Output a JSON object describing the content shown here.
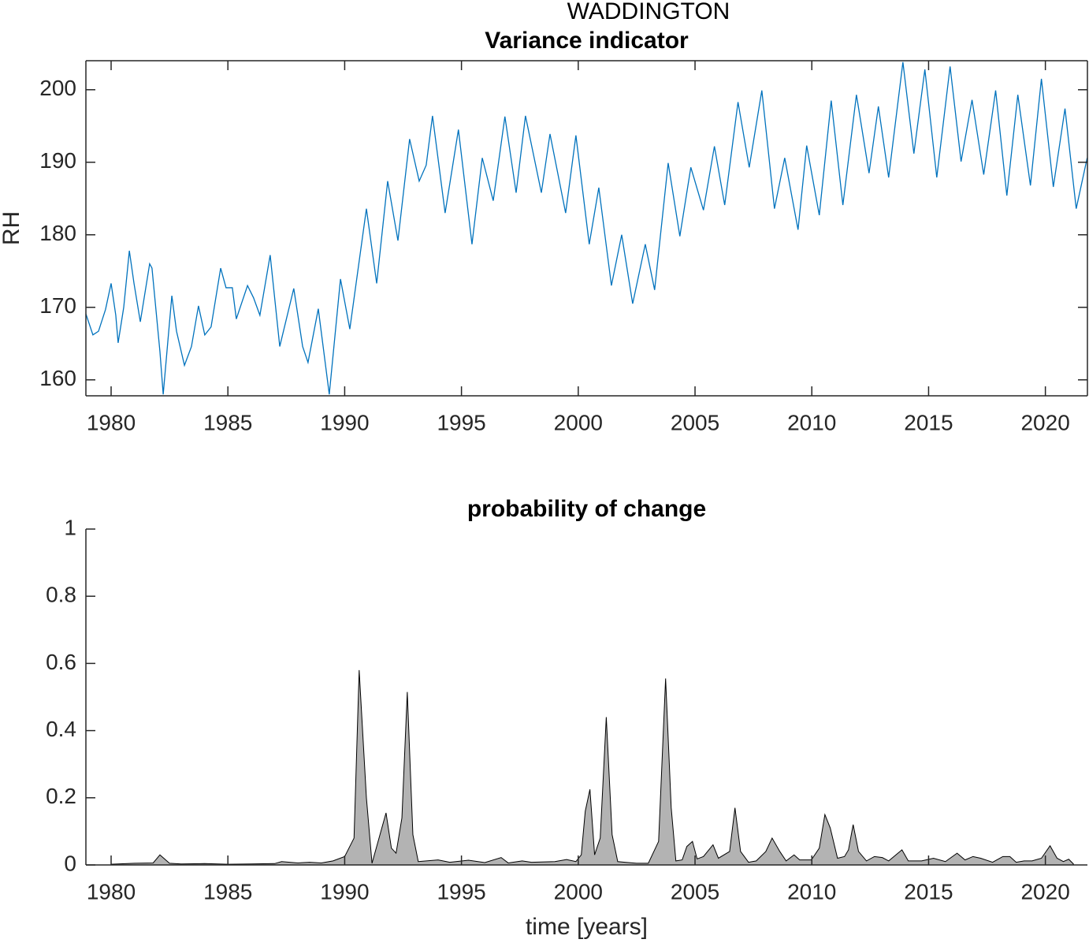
{
  "title": "WADDINGTON",
  "chart_data": [
    {
      "type": "line",
      "title": "Variance indicator",
      "ylabel": "RH",
      "color": "#0072bd",
      "box": true,
      "xlim": [
        1978.92,
        2021.8
      ],
      "ylim": [
        157.8,
        204.0
      ],
      "xticks": [
        1980,
        1985,
        1990,
        1995,
        2000,
        2005,
        2010,
        2015,
        2020
      ],
      "yticks": [
        160,
        170,
        180,
        190,
        200
      ],
      "x": [
        1978.92,
        1979.22,
        1979.46,
        1979.76,
        1980.0,
        1980.2,
        1980.3,
        1980.54,
        1980.78,
        1980.98,
        1981.25,
        1981.65,
        1981.75,
        1982.09,
        1982.23,
        1982.6,
        1982.8,
        1983.14,
        1983.44,
        1983.74,
        1984.01,
        1984.28,
        1984.69,
        1984.92,
        1985.19,
        1985.36,
        1985.84,
        1986.1,
        1986.37,
        1986.81,
        1987.22,
        1987.82,
        1988.2,
        1988.43,
        1988.87,
        1989.34,
        1989.82,
        1990.22,
        1990.93,
        1991.37,
        1991.84,
        1992.28,
        1992.78,
        1993.19,
        1993.49,
        1993.76,
        1994.3,
        1994.87,
        1995.45,
        1995.89,
        1996.36,
        1996.86,
        1997.34,
        1997.74,
        1998.42,
        1998.79,
        1999.46,
        1999.9,
        2000.47,
        2000.88,
        2001.42,
        2001.86,
        2002.33,
        2002.87,
        2003.27,
        2003.85,
        2004.35,
        2004.82,
        2005.36,
        2005.83,
        2006.27,
        2006.84,
        2007.32,
        2007.86,
        2008.4,
        2008.84,
        2009.41,
        2009.78,
        2010.32,
        2010.83,
        2011.33,
        2011.91,
        2012.45,
        2012.85,
        2013.29,
        2013.9,
        2014.37,
        2014.84,
        2015.35,
        2015.92,
        2016.39,
        2016.86,
        2017.36,
        2017.87,
        2018.35,
        2018.82,
        2019.36,
        2019.83,
        2020.34,
        2020.84,
        2021.32,
        2021.79
      ],
      "values": [
        169.1,
        166.2,
        166.7,
        169.7,
        173.3,
        168.9,
        165.1,
        170.0,
        177.8,
        173.3,
        168.0,
        176.0,
        175.4,
        163.9,
        158.0,
        171.6,
        166.7,
        162.0,
        164.6,
        170.2,
        166.2,
        167.3,
        175.4,
        172.7,
        172.7,
        168.4,
        173.0,
        171.3,
        168.9,
        177.2,
        164.6,
        172.6,
        164.6,
        162.4,
        169.8,
        158.0,
        173.9,
        167.0,
        183.6,
        173.3,
        187.4,
        179.2,
        193.2,
        187.4,
        189.6,
        196.4,
        183.0,
        194.5,
        178.7,
        190.6,
        184.7,
        196.3,
        185.8,
        196.4,
        185.8,
        193.9,
        183.0,
        193.7,
        178.7,
        186.5,
        173.0,
        180.0,
        170.5,
        178.7,
        172.4,
        189.9,
        179.8,
        189.3,
        183.4,
        192.2,
        184.1,
        198.3,
        189.3,
        199.9,
        183.6,
        190.6,
        180.7,
        192.3,
        182.7,
        198.5,
        184.1,
        199.3,
        188.5,
        197.7,
        187.9,
        203.8,
        191.2,
        202.8,
        187.9,
        203.2,
        190.1,
        198.6,
        188.3,
        199.9,
        185.4,
        199.3,
        186.8,
        201.5,
        186.6,
        197.4,
        183.6,
        190.6
      ]
    },
    {
      "type": "area",
      "title": "probability of change",
      "xlabel": "time [years]",
      "color": "#b3b3b3",
      "box": false,
      "xlim": [
        1978.92,
        2021.8
      ],
      "ylim": [
        0,
        1
      ],
      "xticks": [
        1980,
        1985,
        1990,
        1995,
        2000,
        2005,
        2010,
        2015,
        2020
      ],
      "yticks": [
        0,
        0.2,
        0.4,
        0.6,
        0.8,
        1
      ],
      "x": [
        1980.0,
        1981.0,
        1981.8,
        1982.09,
        1982.5,
        1983.0,
        1984.0,
        1985.0,
        1986.0,
        1987.0,
        1987.3,
        1988.0,
        1988.5,
        1989.0,
        1989.5,
        1990.0,
        1990.4,
        1990.62,
        1990.93,
        1991.17,
        1991.77,
        1992.0,
        1992.2,
        1992.45,
        1992.68,
        1992.92,
        1993.15,
        1994.0,
        1994.5,
        1995.3,
        1996.0,
        1996.7,
        1997.0,
        1997.6,
        1998.0,
        1999.0,
        1999.5,
        1999.9,
        2000.13,
        2000.3,
        2000.5,
        2000.7,
        2000.94,
        2001.2,
        2001.45,
        2001.69,
        2002.0,
        2002.5,
        2003.0,
        2003.44,
        2003.74,
        2003.98,
        2004.18,
        2004.45,
        2004.65,
        2004.89,
        2005.09,
        2005.36,
        2005.77,
        2006.0,
        2006.48,
        2006.71,
        2006.95,
        2007.29,
        2007.62,
        2008.03,
        2008.3,
        2008.63,
        2008.9,
        2009.24,
        2009.48,
        2009.98,
        2010.32,
        2010.56,
        2010.79,
        2011.1,
        2011.4,
        2011.57,
        2011.77,
        2012.0,
        2012.34,
        2012.68,
        2013.02,
        2013.29,
        2013.86,
        2014.13,
        2014.7,
        2015.21,
        2015.72,
        2016.22,
        2016.56,
        2016.9,
        2017.23,
        2017.74,
        2018.18,
        2018.48,
        2018.75,
        2019.09,
        2019.43,
        2019.83,
        2020.2,
        2020.5,
        2020.77,
        2021.0,
        2021.2
      ],
      "values": [
        0.002,
        0.005,
        0.006,
        0.03,
        0.005,
        0.003,
        0.004,
        0.002,
        0.003,
        0.004,
        0.01,
        0.006,
        0.008,
        0.006,
        0.012,
        0.025,
        0.08,
        0.58,
        0.2,
        0.005,
        0.155,
        0.05,
        0.035,
        0.14,
        0.515,
        0.09,
        0.01,
        0.015,
        0.008,
        0.014,
        0.007,
        0.022,
        0.006,
        0.012,
        0.008,
        0.01,
        0.016,
        0.01,
        0.03,
        0.16,
        0.225,
        0.03,
        0.08,
        0.44,
        0.09,
        0.01,
        0.008,
        0.005,
        0.005,
        0.07,
        0.555,
        0.17,
        0.012,
        0.015,
        0.055,
        0.07,
        0.018,
        0.025,
        0.06,
        0.02,
        0.04,
        0.17,
        0.04,
        0.008,
        0.012,
        0.04,
        0.08,
        0.04,
        0.012,
        0.03,
        0.015,
        0.015,
        0.05,
        0.15,
        0.11,
        0.02,
        0.025,
        0.045,
        0.12,
        0.04,
        0.012,
        0.025,
        0.022,
        0.012,
        0.045,
        0.012,
        0.012,
        0.02,
        0.01,
        0.035,
        0.015,
        0.025,
        0.02,
        0.008,
        0.025,
        0.025,
        0.008,
        0.012,
        0.012,
        0.02,
        0.057,
        0.02,
        0.01,
        0.017,
        0.003
      ]
    }
  ]
}
